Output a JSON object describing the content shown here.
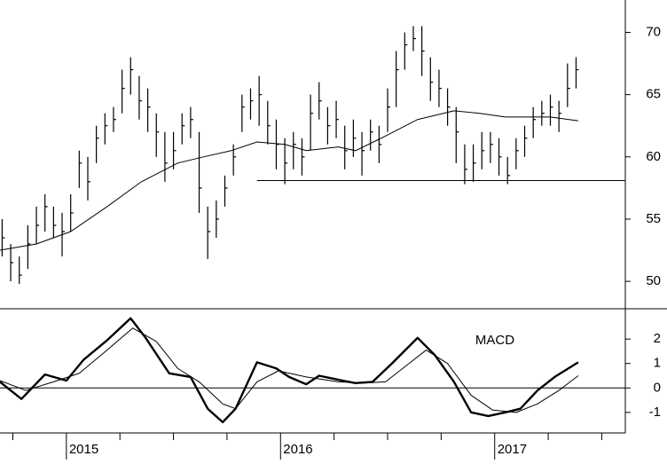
{
  "chart_data": [
    {
      "type": "ohlc",
      "xlim": [
        2014.69,
        2017.61
      ],
      "ylim": [
        47.8,
        72.6
      ],
      "yticks": [
        50,
        55,
        60,
        65,
        70
      ],
      "color": "#000000",
      "x": [
        2014.7,
        2014.74,
        2014.78,
        2014.82,
        2014.86,
        2014.9,
        2014.94,
        2014.98,
        2015.02,
        2015.06,
        2015.1,
        2015.14,
        2015.18,
        2015.22,
        2015.26,
        2015.3,
        2015.34,
        2015.38,
        2015.42,
        2015.46,
        2015.5,
        2015.54,
        2015.58,
        2015.62,
        2015.66,
        2015.7,
        2015.74,
        2015.78,
        2015.82,
        2015.86,
        2015.9,
        2015.94,
        2015.98,
        2016.02,
        2016.06,
        2016.1,
        2016.14,
        2016.18,
        2016.22,
        2016.26,
        2016.3,
        2016.34,
        2016.38,
        2016.42,
        2016.46,
        2016.5,
        2016.54,
        2016.58,
        2016.62,
        2016.66,
        2016.7,
        2016.74,
        2016.78,
        2016.82,
        2016.86,
        2016.9,
        2016.94,
        2016.98,
        2017.02,
        2017.06,
        2017.1,
        2017.14,
        2017.18,
        2017.22,
        2017.26,
        2017.3,
        2017.34,
        2017.38
      ],
      "high": [
        55,
        53,
        52,
        54.5,
        56,
        57,
        56,
        55.5,
        57,
        60.5,
        60,
        62.5,
        63.5,
        64,
        67,
        68,
        66.5,
        65.5,
        63.5,
        62,
        62,
        63.5,
        64,
        62,
        56,
        56.5,
        58.5,
        61,
        65,
        65.5,
        66.5,
        64.5,
        63,
        61.5,
        62,
        61.5,
        65,
        66,
        64,
        64.5,
        62.5,
        63,
        62,
        63,
        62.5,
        65.5,
        68.5,
        70,
        70.5,
        70.5,
        68,
        67,
        65.5,
        64,
        61,
        61,
        62,
        62,
        61.5,
        60,
        61.5,
        62.5,
        64,
        64.5,
        65,
        64.5,
        67.5,
        68
      ],
      "low": [
        52,
        50,
        49.8,
        51,
        53,
        54,
        53.5,
        52,
        54,
        57.5,
        56.5,
        59.5,
        61,
        62,
        63.5,
        65,
        63,
        62,
        60,
        58,
        59,
        61,
        61.5,
        55.5,
        51.8,
        53.5,
        56,
        58.5,
        62,
        63,
        62.5,
        61,
        59,
        57.8,
        59,
        58.5,
        60.5,
        63,
        61,
        61.5,
        59,
        60,
        58.5,
        60.5,
        59.5,
        62,
        64,
        67,
        68.5,
        66.5,
        64.5,
        64,
        62.5,
        59.5,
        57.8,
        58,
        59,
        59.5,
        58.5,
        57.8,
        59,
        60,
        61.5,
        62.5,
        62.5,
        62,
        64,
        65.5
      ],
      "close": [
        53.5,
        51.5,
        50.5,
        53,
        54.5,
        56,
        54.5,
        54,
        55.5,
        59.5,
        58,
        61.5,
        62.5,
        63,
        65.5,
        67,
        64.5,
        64,
        62,
        59.5,
        60.5,
        62.5,
        63,
        57.5,
        54,
        55,
        57.5,
        60,
        64,
        64.5,
        65,
        62.5,
        61,
        59.5,
        61,
        60,
        63.5,
        64.5,
        62.5,
        63,
        60.5,
        61.5,
        60.5,
        62,
        61,
        64,
        67,
        69,
        69.5,
        68.5,
        66,
        65.5,
        64,
        62,
        59,
        59.5,
        60.5,
        61,
        60,
        58.5,
        60.5,
        61.5,
        63,
        63.5,
        64,
        63.5,
        65.5,
        67
      ],
      "ma": {
        "x": [
          2014.69,
          2014.86,
          2015.02,
          2015.19,
          2015.35,
          2015.52,
          2015.64,
          2015.77,
          2015.89,
          2016.02,
          2016.12,
          2016.27,
          2016.35,
          2016.47,
          2016.64,
          2016.81,
          2016.93,
          2017.05,
          2017.26,
          2017.39
        ],
        "values": [
          52.5,
          53,
          54,
          56,
          58,
          59.5,
          60,
          60.5,
          61.2,
          61,
          60.5,
          60.8,
          60.5,
          61.5,
          63,
          63.7,
          63.5,
          63.2,
          63.2,
          62.9
        ]
      },
      "hline": {
        "value": 58.1,
        "x_start": 2015.89
      }
    },
    {
      "type": "line",
      "label": "MACD",
      "xlim": [
        2014.69,
        2017.61
      ],
      "xticks": [
        2015,
        2016,
        2017
      ],
      "xminorticks": [
        2014.75,
        2015.25,
        2015.5,
        2015.75,
        2016.25,
        2016.5,
        2016.75,
        2017.25,
        2017.5
      ],
      "ylim": [
        -1.84,
        3.24
      ],
      "yticks": [
        -1,
        0,
        1,
        2
      ],
      "hline": {
        "value": 0
      },
      "series": [
        {
          "color": "#000000",
          "line_width": 2.4,
          "x": [
            2014.69,
            2014.79,
            2014.9,
            2015.0,
            2015.08,
            2015.19,
            2015.3,
            2015.37,
            2015.48,
            2015.58,
            2015.66,
            2015.73,
            2015.79,
            2015.89,
            2015.98,
            2016.04,
            2016.12,
            2016.18,
            2016.29,
            2016.35,
            2016.43,
            2016.52,
            2016.64,
            2016.72,
            2016.81,
            2016.89,
            2016.97,
            2017.05,
            2017.12,
            2017.2,
            2017.28,
            2017.39
          ],
          "values": [
            0.25,
            -0.45,
            0.55,
            0.3,
            1.15,
            1.95,
            2.85,
            2.05,
            0.6,
            0.45,
            -0.85,
            -1.4,
            -0.85,
            1.05,
            0.8,
            0.45,
            0.15,
            0.5,
            0.3,
            0.2,
            0.25,
            1.0,
            2.05,
            1.35,
            0.25,
            -1.0,
            -1.15,
            -1.0,
            -0.85,
            -0.1,
            0.45,
            1.05
          ]
        },
        {
          "color": "#000000",
          "line_width": 1,
          "x": [
            2014.69,
            2014.81,
            2014.94,
            2015.06,
            2015.19,
            2015.31,
            2015.42,
            2015.52,
            2015.62,
            2015.73,
            2015.79,
            2015.89,
            2015.99,
            2016.12,
            2016.27,
            2016.39,
            2016.49,
            2016.6,
            2016.68,
            2016.78,
            2016.89,
            2016.99,
            2017.1,
            2017.2,
            2017.3,
            2017.39
          ],
          "values": [
            0.3,
            -0.1,
            0.25,
            0.6,
            1.55,
            2.45,
            1.9,
            0.8,
            0.25,
            -0.65,
            -0.85,
            0.25,
            0.7,
            0.45,
            0.25,
            0.2,
            0.25,
            1.0,
            1.55,
            1.0,
            -0.3,
            -0.9,
            -1.0,
            -0.65,
            -0.1,
            0.5
          ]
        }
      ]
    }
  ]
}
